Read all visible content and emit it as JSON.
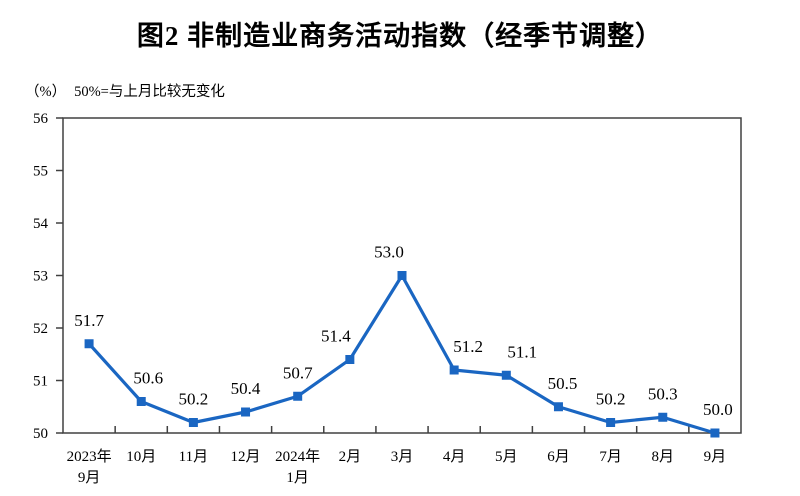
{
  "chart_data": {
    "type": "line",
    "title": "图2 非制造业商务活动指数（经季节调整）",
    "unit_label": "（%）",
    "note": "50%=与上月比较无变化",
    "categories": [
      [
        "2023年",
        "9月"
      ],
      [
        "10月",
        ""
      ],
      [
        "11月",
        ""
      ],
      [
        "12月",
        ""
      ],
      [
        "2024年",
        "1月"
      ],
      [
        "2月",
        ""
      ],
      [
        "3月",
        ""
      ],
      [
        "4月",
        ""
      ],
      [
        "5月",
        ""
      ],
      [
        "6月",
        ""
      ],
      [
        "7月",
        ""
      ],
      [
        "8月",
        ""
      ],
      [
        "9月",
        ""
      ]
    ],
    "values": [
      51.7,
      50.6,
      50.2,
      50.4,
      50.7,
      51.4,
      53.0,
      51.2,
      51.1,
      50.5,
      50.2,
      50.3,
      50.0
    ],
    "data_labels": [
      "51.7",
      "50.6",
      "50.2",
      "50.4",
      "50.7",
      "51.4",
      "53.0",
      "51.2",
      "51.1",
      "50.5",
      "50.2",
      "50.3",
      "50.0"
    ],
    "y_ticks": [
      "50",
      "51",
      "52",
      "53",
      "54",
      "55",
      "56"
    ],
    "ylim": [
      50,
      56
    ],
    "grid": false,
    "legend": "none",
    "marker": "square",
    "line_color": "#1A66C2",
    "axis_color": "#404040",
    "text_color": "#000000"
  }
}
